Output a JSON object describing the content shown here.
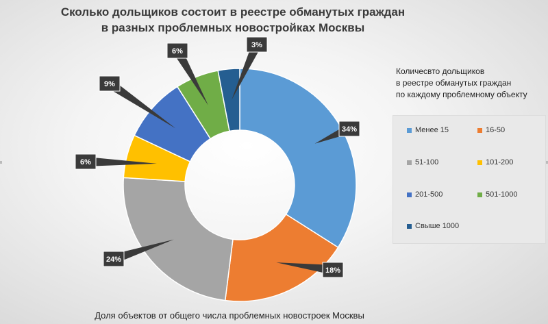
{
  "title_lines": [
    "Сколько дольщиков состоит в реестре обманутых граждан",
    "в разных проблемных новостройках Москвы"
  ],
  "legend_title_lines": [
    "Количесвто  дольщиков",
    "в реестре обманутых граждан",
    "по каждому проблемному объекту"
  ],
  "footer": "Доля объектов от общего числа проблемных новостроек Москвы",
  "chart_data": {
    "type": "pie",
    "donut": true,
    "title": "Сколько дольщиков состоит в реестре обманутых граждан в разных проблемных новостройках Москвы",
    "xlabel": "Доля объектов от общего числа проблемных новостроек Москвы",
    "legend_position": "right",
    "slices": [
      {
        "label": "Менее 15",
        "value": 34,
        "display": "34%",
        "color": "#5b9bd5"
      },
      {
        "label": "16-50",
        "value": 18,
        "display": "18%",
        "color": "#ed7d31"
      },
      {
        "label": "51-100",
        "value": 24,
        "display": "24%",
        "color": "#a5a5a5"
      },
      {
        "label": "101-200",
        "value": 6,
        "display": "6%",
        "color": "#ffc000"
      },
      {
        "label": "201-500",
        "value": 9,
        "display": "9%",
        "color": "#4472c4"
      },
      {
        "label": "501-1000",
        "value": 6,
        "display": "6%",
        "color": "#70ad47"
      },
      {
        "label": "Свыше 1000",
        "value": 3,
        "display": "3%",
        "color": "#255e91"
      }
    ]
  }
}
